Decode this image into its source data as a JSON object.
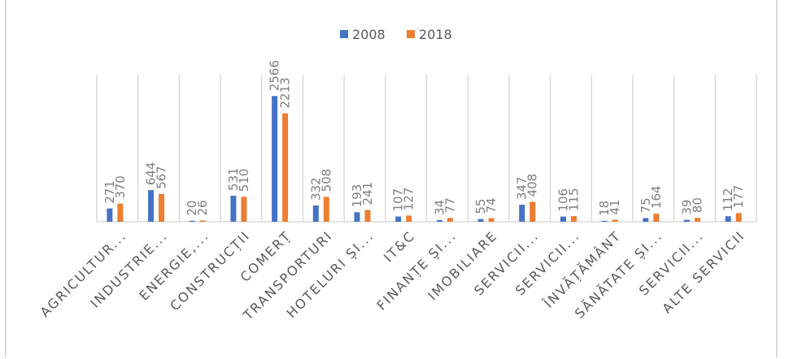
{
  "chart_data": {
    "type": "bar",
    "title": "",
    "xlabel": "",
    "ylabel": "",
    "ylim": [
      0,
      3000
    ],
    "grid": "vertical category separators",
    "legend_position": "top-center",
    "categories": [
      "AGRICULTUR...",
      "INDUSTRIE...",
      "ENERGIE,...",
      "CONSTRUCȚII",
      "COMERȚ",
      "TRANSPORTURI",
      "HOTELURI ȘI...",
      "IT&C",
      "FINANȚE ȘI...",
      "IMOBILIARE",
      "SERVICII...",
      "SERVICII...",
      "ÎNVĂȚĂMÂNT",
      "SĂNĂTATE ȘI...",
      "SERVICII...",
      "ALTE SERVICII"
    ],
    "series": [
      {
        "name": "2008",
        "color": "#4472c4",
        "values": [
          271,
          644,
          20,
          531,
          2566,
          332,
          193,
          107,
          34,
          55,
          347,
          106,
          18,
          75,
          39,
          112
        ]
      },
      {
        "name": "2018",
        "color": "#ed7d31",
        "values": [
          370,
          567,
          26,
          510,
          2213,
          508,
          241,
          127,
          77,
          74,
          408,
          115,
          41,
          164,
          80,
          177
        ]
      }
    ]
  }
}
